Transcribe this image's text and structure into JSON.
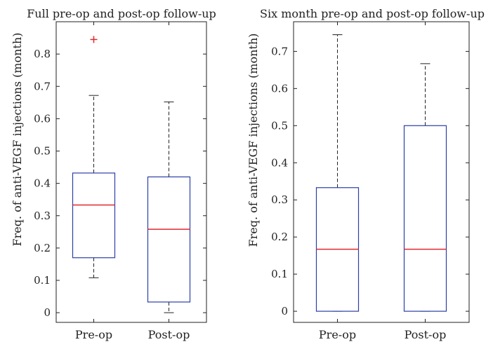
{
  "chart_data": [
    {
      "type": "box",
      "title": "Full pre-op and post-op follow-up",
      "ylabel": "Freq. of anti-VEGF injections (month)",
      "ylim": [
        -0.03,
        0.9
      ],
      "yticks": [
        0,
        0.1,
        0.2,
        0.3,
        0.4,
        0.5,
        0.6,
        0.7,
        0.8
      ],
      "ytick_labels": [
        "0",
        "0.1",
        "0.2",
        "0.3",
        "0.4",
        "0.5",
        "0.6",
        "0.7",
        "0.8"
      ],
      "categories": [
        "Pre-op",
        "Post-op"
      ],
      "boxes": [
        {
          "whisker_low": 0.108,
          "q1": 0.17,
          "median": 0.333,
          "q3": 0.432,
          "whisker_high": 0.672,
          "outliers": [
            0.845
          ]
        },
        {
          "whisker_low": 0.0,
          "q1": 0.033,
          "median": 0.258,
          "q3": 0.42,
          "whisker_high": 0.652,
          "outliers": []
        }
      ]
    },
    {
      "type": "box",
      "title": "Six month pre-op and post-op follow-up",
      "ylabel": "Freq. of anti-VEGF injections (month)",
      "ylim": [
        -0.03,
        0.78
      ],
      "yticks": [
        0,
        0.1,
        0.2,
        0.3,
        0.4,
        0.5,
        0.6,
        0.7
      ],
      "ytick_labels": [
        "0",
        "0.1",
        "0.2",
        "0.3",
        "0.4",
        "0.5",
        "0.6",
        "0.7"
      ],
      "categories": [
        "Pre-op",
        "Post-op"
      ],
      "boxes": [
        {
          "whisker_low": 0.0,
          "q1": 0.0,
          "median": 0.167,
          "q3": 0.333,
          "whisker_high": 0.745,
          "outliers": []
        },
        {
          "whisker_low": 0.0,
          "q1": 0.0,
          "median": 0.167,
          "q3": 0.5,
          "whisker_high": 0.667,
          "outliers": []
        }
      ]
    }
  ],
  "colors": {
    "box": "#2b3fa8",
    "median": "#e0282e",
    "whisker": "#222222",
    "outlier": "#e0282e",
    "axis": "#222222"
  }
}
